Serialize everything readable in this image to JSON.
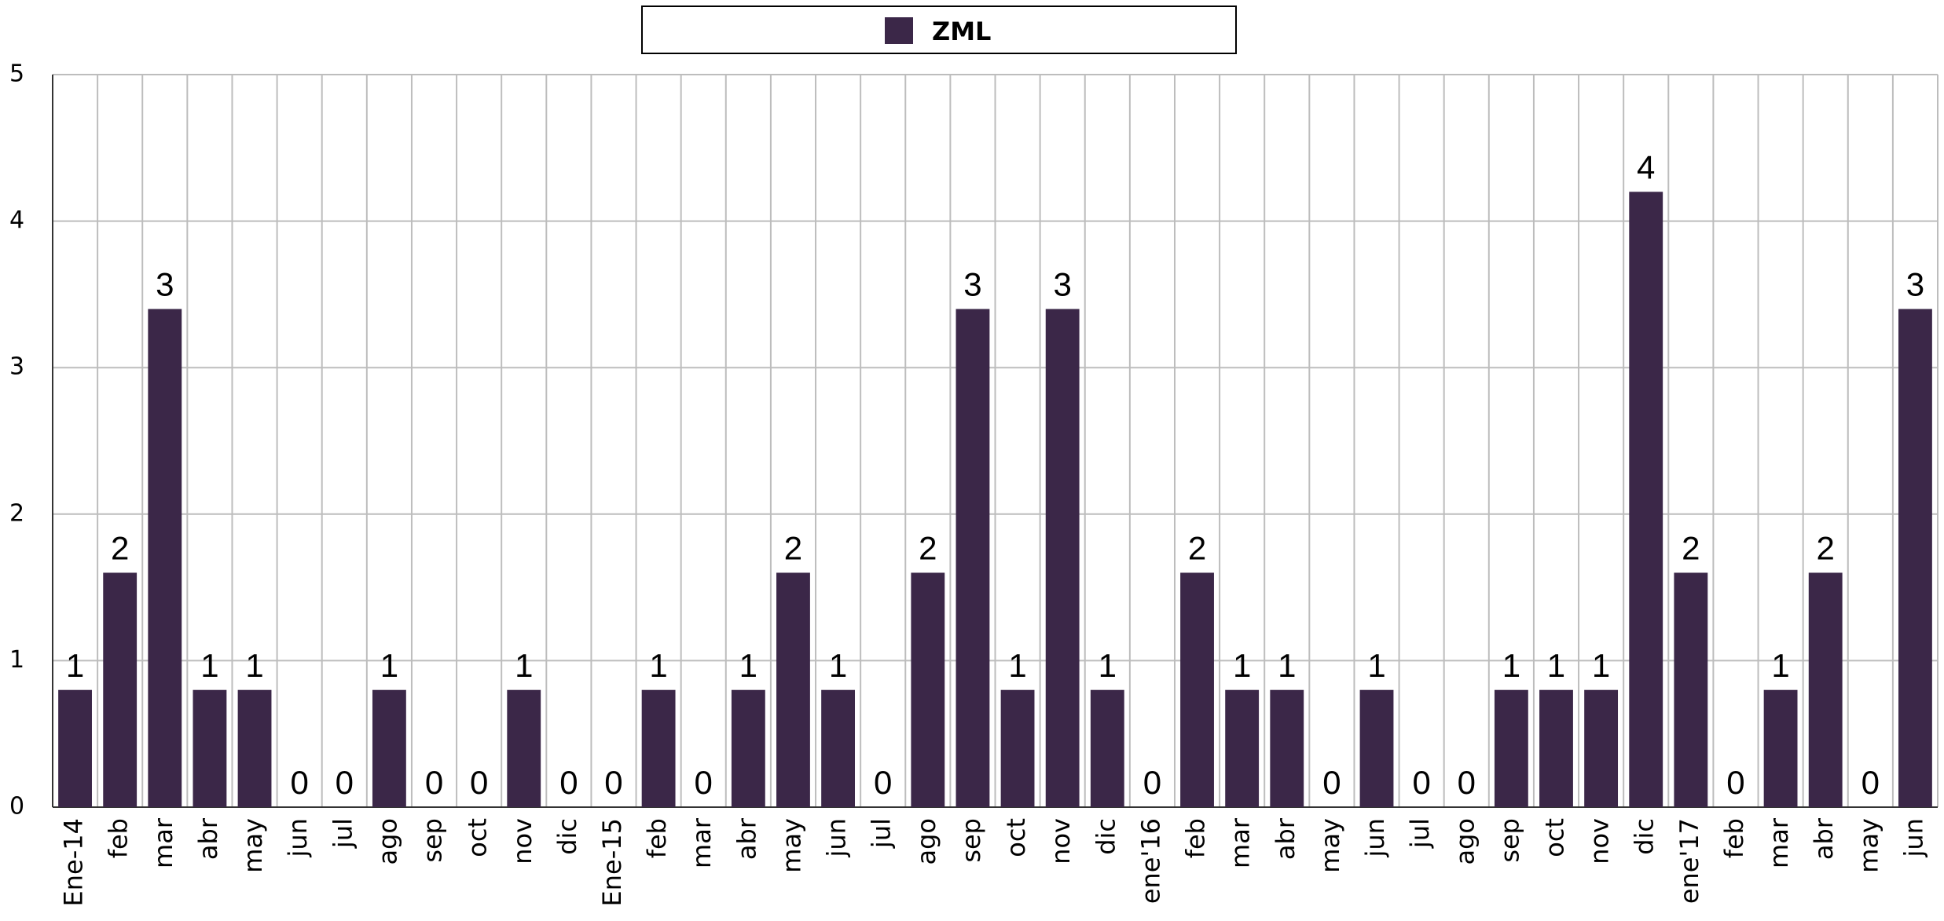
{
  "chart_data": {
    "type": "bar",
    "categories": [
      "Ene-14",
      "feb",
      "mar",
      "abr",
      "may",
      "jun",
      "jul",
      "ago",
      "sep",
      "oct",
      "nov",
      "dic",
      "Ene-15",
      "feb",
      "mar",
      "abr",
      "may",
      "jun",
      "jul",
      "ago",
      "sep",
      "oct",
      "nov",
      "dic",
      "ene'16",
      "feb",
      "mar",
      "abr",
      "may",
      "jun",
      "jul",
      "ago",
      "sep",
      "oct",
      "nov",
      "dic",
      "ene'17",
      "feb",
      "mar",
      "abr",
      "may",
      "jun"
    ],
    "series": [
      {
        "name": "ZML",
        "color": "#3b2748",
        "values": [
          0.8,
          1.6,
          3.4,
          0.8,
          0.8,
          0,
          0,
          0.8,
          0,
          0,
          0.8,
          0,
          0,
          0.8,
          0,
          0.8,
          1.6,
          0.8,
          0,
          1.6,
          3.4,
          0.8,
          3.4,
          0.8,
          0,
          1.6,
          0.8,
          0.8,
          0,
          0.8,
          0,
          0,
          0.8,
          0.8,
          0.8,
          4.2,
          1.6,
          0,
          0.8,
          1.6,
          0,
          3.4
        ],
        "value_labels": [
          "1",
          "2",
          "3",
          "1",
          "1",
          "0",
          "0",
          "1",
          "0",
          "0",
          "1",
          "0",
          "0",
          "1",
          "0",
          "1",
          "2",
          "1",
          "0",
          "2",
          "3",
          "1",
          "3",
          "1",
          "0",
          "2",
          "1",
          "1",
          "0",
          "1",
          "0",
          "0",
          "1",
          "1",
          "1",
          "4",
          "2",
          "0",
          "1",
          "2",
          "0",
          "3"
        ]
      }
    ],
    "ylim": [
      0,
      5
    ],
    "yticks": [
      0,
      1,
      2,
      3,
      4,
      5
    ],
    "grid": true,
    "legend": "top"
  }
}
